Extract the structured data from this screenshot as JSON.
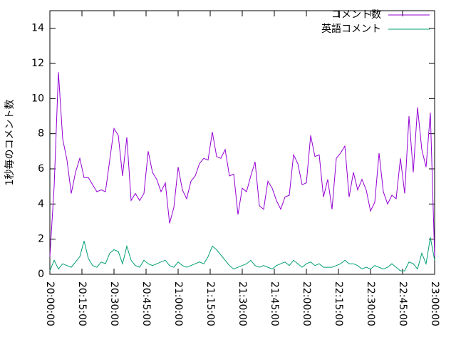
{
  "chart_data": {
    "type": "line",
    "ylabel": "1秒毎のコメント数",
    "x": [
      "20:00:00",
      "20:02:00",
      "20:04:00",
      "20:06:00",
      "20:08:00",
      "20:10:00",
      "20:12:00",
      "20:14:00",
      "20:16:00",
      "20:18:00",
      "20:20:00",
      "20:22:00",
      "20:24:00",
      "20:26:00",
      "20:28:00",
      "20:30:00",
      "20:32:00",
      "20:34:00",
      "20:36:00",
      "20:38:00",
      "20:40:00",
      "20:42:00",
      "20:44:00",
      "20:46:00",
      "20:48:00",
      "20:50:00",
      "20:52:00",
      "20:54:00",
      "20:56:00",
      "20:58:00",
      "21:00:00",
      "21:02:00",
      "21:04:00",
      "21:06:00",
      "21:08:00",
      "21:10:00",
      "21:12:00",
      "21:14:00",
      "21:16:00",
      "21:18:00",
      "21:20:00",
      "21:22:00",
      "21:24:00",
      "21:26:00",
      "21:28:00",
      "21:30:00",
      "21:32:00",
      "21:34:00",
      "21:36:00",
      "21:38:00",
      "21:40:00",
      "21:42:00",
      "21:44:00",
      "21:46:00",
      "21:48:00",
      "21:50:00",
      "21:52:00",
      "21:54:00",
      "21:56:00",
      "21:58:00",
      "22:00:00",
      "22:02:00",
      "22:04:00",
      "22:06:00",
      "22:08:00",
      "22:10:00",
      "22:12:00",
      "22:14:00",
      "22:16:00",
      "22:18:00",
      "22:20:00",
      "22:22:00",
      "22:24:00",
      "22:26:00",
      "22:28:00",
      "22:30:00",
      "22:32:00",
      "22:34:00",
      "22:36:00",
      "22:38:00",
      "22:40:00",
      "22:42:00",
      "22:44:00",
      "22:46:00",
      "22:48:00",
      "22:50:00",
      "22:52:00",
      "22:54:00",
      "22:56:00",
      "22:58:00",
      "23:00:00"
    ],
    "series": [
      {
        "name": "コメント数",
        "color": "#9400d3",
        "values": [
          1.0,
          5.0,
          11.5,
          7.7,
          6.5,
          4.6,
          5.8,
          6.6,
          5.5,
          5.5,
          5.1,
          4.7,
          4.8,
          4.7,
          6.5,
          8.3,
          7.9,
          5.6,
          7.8,
          4.2,
          4.6,
          4.2,
          4.6,
          7.0,
          5.8,
          5.4,
          4.7,
          5.2,
          2.9,
          3.8,
          6.1,
          4.8,
          4.3,
          5.3,
          5.6,
          6.3,
          6.6,
          6.5,
          8.1,
          6.7,
          6.6,
          7.1,
          5.6,
          5.7,
          3.4,
          4.9,
          4.7,
          5.6,
          6.4,
          3.9,
          3.7,
          5.3,
          4.9,
          4.2,
          3.7,
          4.4,
          4.5,
          6.8,
          6.3,
          5.1,
          5.2,
          7.9,
          6.7,
          6.8,
          4.4,
          5.4,
          3.7,
          6.6,
          6.9,
          7.3,
          4.4,
          5.8,
          4.8,
          5.4,
          4.8,
          3.6,
          4.1,
          6.9,
          4.7,
          4.0,
          4.5,
          4.3,
          6.6,
          4.6,
          9.0,
          5.8,
          9.5,
          7.1,
          6.1,
          9.2,
          1.0
        ]
      },
      {
        "name": "英語コメント",
        "color": "#009e73",
        "values": [
          0.2,
          0.8,
          0.3,
          0.6,
          0.5,
          0.4,
          0.7,
          1.0,
          1.9,
          0.9,
          0.5,
          0.4,
          0.7,
          0.6,
          1.2,
          1.4,
          1.3,
          0.6,
          1.6,
          0.8,
          0.5,
          0.4,
          0.8,
          0.6,
          0.5,
          0.6,
          0.7,
          0.8,
          0.5,
          0.4,
          0.7,
          0.5,
          0.4,
          0.5,
          0.6,
          0.7,
          0.6,
          1.0,
          1.6,
          1.4,
          1.1,
          0.8,
          0.5,
          0.3,
          0.4,
          0.5,
          0.6,
          0.8,
          0.5,
          0.4,
          0.5,
          0.4,
          0.3,
          0.5,
          0.6,
          0.7,
          0.5,
          0.8,
          0.6,
          0.4,
          0.6,
          0.7,
          0.5,
          0.6,
          0.4,
          0.4,
          0.4,
          0.5,
          0.6,
          0.8,
          0.6,
          0.6,
          0.5,
          0.3,
          0.4,
          0.3,
          0.5,
          0.4,
          0.3,
          0.4,
          0.6,
          0.4,
          0.2,
          0.2,
          0.7,
          0.6,
          0.3,
          1.2,
          0.6,
          2.1,
          0.8
        ]
      }
    ],
    "xlim": [
      "20:00:00",
      "23:00:00"
    ],
    "xticks": [
      "20:00:00",
      "20:15:00",
      "20:30:00",
      "20:45:00",
      "21:00:00",
      "21:15:00",
      "21:30:00",
      "21:45:00",
      "22:00:00",
      "22:15:00",
      "22:30:00",
      "22:45:00",
      "23:00:00"
    ],
    "ylim": [
      0,
      15
    ],
    "yticks": [
      0,
      2,
      4,
      6,
      8,
      10,
      12,
      14
    ],
    "legend": "top-right"
  }
}
